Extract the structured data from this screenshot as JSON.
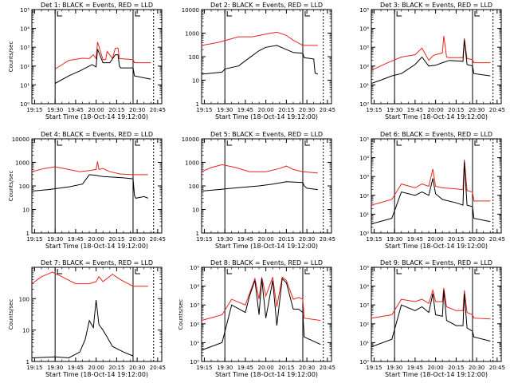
{
  "figure": {
    "colors": {
      "events": "#000000",
      "lld": "#e8241f",
      "axes": "#000000",
      "background": "#ffffff"
    },
    "xlabel": "Start Time (18-Oct-14 19:12:00)",
    "ylabel": "Counts/sec"
  },
  "chart_data": [
    {
      "type": "line",
      "title": "Det 1: BLACK = Events, RED = LLD",
      "xlabel": "Start Time (18-Oct-14 19:12:00)",
      "ylabel": "Counts/sec",
      "y_scale": "log",
      "ylim": [
        1,
        100000
      ],
      "ytick_labels": [
        "10⁰",
        "10¹",
        "10²",
        "10³",
        "10⁴",
        "10⁵"
      ],
      "xtick_labels": [
        "19:15",
        "19:30",
        "19:45",
        "20:00",
        "20:15",
        "20:30",
        "20:45"
      ],
      "marker_times": [
        "19:30",
        "20:27",
        "20:42"
      ],
      "series": [
        {
          "color": "red",
          "x": [
            "19:30",
            "19:40",
            "19:50",
            "19:55",
            "19:58",
            "20:00",
            "20:01",
            "20:05",
            "20:07",
            "20:08",
            "20:12",
            "20:14",
            "20:16",
            "20:17",
            "20:27",
            "20:28",
            "20:40"
          ],
          "y": [
            70,
            200,
            260,
            250,
            400,
            250,
            1900,
            220,
            220,
            600,
            250,
            900,
            900,
            250,
            220,
            150,
            150
          ]
        },
        {
          "color": "black",
          "x": [
            "19:30",
            "19:40",
            "19:48",
            "19:55",
            "19:57",
            "20:00",
            "20:01",
            "20:05",
            "20:10",
            "20:14",
            "20:16",
            "20:17",
            "20:18",
            "20:27",
            "20:28",
            "20:40"
          ],
          "y": [
            12,
            30,
            55,
            100,
            120,
            90,
            800,
            150,
            150,
            400,
            400,
            100,
            80,
            80,
            30,
            20
          ]
        }
      ]
    },
    {
      "type": "line",
      "title": "Det 2: BLACK = Events, RED = LLD",
      "xlabel": "Start Time (18-Oct-14 19:12:00)",
      "ylabel": "",
      "y_scale": "log",
      "ylim": [
        1,
        10000
      ],
      "ytick_labels": [
        "1",
        "10",
        "100",
        "1000",
        "10000"
      ],
      "xtick_labels": [
        "19:15",
        "19:30",
        "19:45",
        "20:00",
        "20:15",
        "20:30",
        "20:45"
      ],
      "marker_times": [
        "19:30",
        "20:27",
        "20:42"
      ],
      "series": [
        {
          "color": "red",
          "x": [
            "19:13",
            "19:25",
            "19:40",
            "19:50",
            "20:00",
            "20:08",
            "20:15",
            "20:20",
            "20:27",
            "20:30",
            "20:38"
          ],
          "y": [
            300,
            400,
            700,
            700,
            900,
            1100,
            800,
            500,
            300,
            300,
            300
          ]
        },
        {
          "color": "black",
          "x": [
            "19:13",
            "19:28",
            "19:30",
            "19:40",
            "19:48",
            "19:55",
            "20:00",
            "20:08",
            "20:20",
            "20:27",
            "20:28",
            "20:35",
            "20:36",
            "20:38"
          ],
          "y": [
            18,
            22,
            30,
            40,
            90,
            180,
            250,
            300,
            150,
            140,
            90,
            80,
            20,
            18
          ]
        }
      ]
    },
    {
      "type": "line",
      "title": "Det 3: BLACK = Events, RED = LLD",
      "xlabel": "Start Time (18-Oct-14 19:12:00)",
      "ylabel": "",
      "y_scale": "log",
      "ylim": [
        1,
        100000
      ],
      "ytick_labels": [
        "10⁰",
        "10¹",
        "10²",
        "10³",
        "10⁴",
        "10⁵"
      ],
      "xtick_labels": [
        "19:15",
        "19:30",
        "19:45",
        "20:00",
        "20:15",
        "20:30",
        "20:45"
      ],
      "marker_times": [
        "19:30",
        "20:27",
        "20:42"
      ],
      "series": [
        {
          "color": "red",
          "x": [
            "19:13",
            "19:25",
            "19:35",
            "19:45",
            "19:50",
            "19:55",
            "19:58",
            "20:00",
            "20:05",
            "20:06",
            "20:08",
            "20:10",
            "20:20",
            "20:21",
            "20:23",
            "20:27",
            "20:28",
            "20:40"
          ],
          "y": [
            60,
            150,
            300,
            400,
            900,
            200,
            350,
            400,
            500,
            4000,
            300,
            280,
            280,
            3000,
            250,
            220,
            150,
            150
          ]
        },
        {
          "color": "black",
          "x": [
            "19:13",
            "19:20",
            "19:28",
            "19:35",
            "19:45",
            "19:50",
            "19:55",
            "20:00",
            "20:05",
            "20:10",
            "20:20",
            "20:21",
            "20:23",
            "20:27",
            "20:28",
            "20:40"
          ],
          "y": [
            12,
            18,
            30,
            40,
            120,
            300,
            100,
            110,
            150,
            200,
            180,
            2500,
            120,
            100,
            40,
            30
          ]
        }
      ]
    },
    {
      "type": "line",
      "title": "Det 4: BLACK = Events, RED = LLD",
      "xlabel": "Start Time (18-Oct-14 19:12:00)",
      "ylabel": "Counts/sec",
      "y_scale": "log",
      "ylim": [
        1,
        10000
      ],
      "ytick_labels": [
        "1",
        "10",
        "100",
        "1000",
        "10000"
      ],
      "xtick_labels": [
        "19:15",
        "19:30",
        "19:45",
        "20:00",
        "20:15",
        "20:30",
        "20:45"
      ],
      "marker_times": [
        "19:30",
        "20:27",
        "20:42"
      ],
      "series": [
        {
          "color": "red",
          "x": [
            "19:13",
            "19:22",
            "19:30",
            "19:40",
            "19:48",
            "19:55",
            "20:00",
            "20:01",
            "20:02",
            "20:05",
            "20:10",
            "20:18",
            "20:27",
            "20:38"
          ],
          "y": [
            400,
            550,
            650,
            500,
            400,
            450,
            500,
            1100,
            500,
            550,
            400,
            320,
            300,
            300
          ]
        },
        {
          "color": "black",
          "x": [
            "19:13",
            "19:25",
            "19:40",
            "19:50",
            "19:55",
            "20:00",
            "20:05",
            "20:10",
            "20:20",
            "20:27",
            "20:28",
            "20:29",
            "20:35",
            "20:38"
          ],
          "y": [
            60,
            70,
            90,
            120,
            300,
            280,
            250,
            240,
            220,
            200,
            40,
            30,
            35,
            30
          ]
        }
      ]
    },
    {
      "type": "line",
      "title": "Det 5: BLACK = Events, RED = LLD",
      "xlabel": "Start Time (18-Oct-14 19:12:00)",
      "ylabel": "",
      "y_scale": "log",
      "ylim": [
        1,
        10000
      ],
      "ytick_labels": [
        "1",
        "10",
        "100",
        "1000",
        "10000"
      ],
      "xtick_labels": [
        "19:15",
        "19:30",
        "19:45",
        "20:00",
        "20:15",
        "20:30",
        "20:45"
      ],
      "marker_times": [
        "19:30",
        "20:27",
        "20:42"
      ],
      "series": [
        {
          "color": "red",
          "x": [
            "19:13",
            "19:20",
            "19:28",
            "19:38",
            "19:48",
            "20:00",
            "20:10",
            "20:15",
            "20:20",
            "20:27",
            "20:38"
          ],
          "y": [
            400,
            600,
            800,
            600,
            400,
            400,
            550,
            700,
            500,
            400,
            350
          ]
        },
        {
          "color": "black",
          "x": [
            "19:13",
            "19:25",
            "19:40",
            "19:55",
            "20:05",
            "20:15",
            "20:27",
            "20:28",
            "20:30",
            "20:38"
          ],
          "y": [
            60,
            70,
            85,
            100,
            120,
            150,
            140,
            100,
            80,
            70
          ]
        }
      ]
    },
    {
      "type": "line",
      "title": "Det 6: BLACK = Events, RED = LLD",
      "xlabel": "Start Time (18-Oct-14 19:12:00)",
      "ylabel": "",
      "y_scale": "log",
      "ylim": [
        1,
        100000
      ],
      "ytick_labels": [
        "10⁰",
        "10¹",
        "10²",
        "10³",
        "10⁴",
        "10⁵"
      ],
      "xtick_labels": [
        "19:15",
        "19:30",
        "19:45",
        "20:00",
        "20:15",
        "20:30",
        "20:45"
      ],
      "marker_times": [
        "19:30",
        "20:27",
        "20:42"
      ],
      "series": [
        {
          "color": "red",
          "x": [
            "19:13",
            "19:28",
            "19:35",
            "19:45",
            "19:50",
            "19:55",
            "19:58",
            "20:00",
            "20:05",
            "20:15",
            "20:20",
            "20:21",
            "20:23",
            "20:27",
            "20:28",
            "20:40"
          ],
          "y": [
            30,
            60,
            400,
            250,
            400,
            300,
            2500,
            300,
            250,
            220,
            200,
            8000,
            180,
            150,
            50,
            50
          ]
        },
        {
          "color": "black",
          "x": [
            "19:13",
            "19:28",
            "19:35",
            "19:45",
            "19:50",
            "19:55",
            "19:58",
            "20:00",
            "20:05",
            "20:15",
            "20:20",
            "20:21",
            "20:23",
            "20:27",
            "20:28",
            "20:40"
          ],
          "y": [
            3,
            6,
            150,
            100,
            150,
            100,
            800,
            120,
            60,
            40,
            30,
            6000,
            30,
            25,
            6,
            4
          ]
        }
      ]
    },
    {
      "type": "line",
      "title": "Det 7: BLACK = Events, RED = LLD",
      "xlabel": "Start Time (18-Oct-14 19:12:00)",
      "ylabel": "Counts/sec",
      "y_scale": "log",
      "ylim": [
        1,
        1000
      ],
      "ytick_labels": [
        "1",
        "10",
        "100"
      ],
      "xtick_labels": [
        "19:15",
        "19:30",
        "19:45",
        "20:00",
        "20:15",
        "20:30",
        "20:45"
      ],
      "marker_times": [
        "19:30",
        "20:27",
        "20:42"
      ],
      "series": [
        {
          "color": "red",
          "x": [
            "19:13",
            "19:20",
            "19:28",
            "19:35",
            "19:45",
            "19:55",
            "20:00",
            "20:02",
            "20:05",
            "20:12",
            "20:18",
            "20:27",
            "20:38"
          ],
          "y": [
            300,
            500,
            700,
            500,
            300,
            300,
            350,
            500,
            350,
            600,
            400,
            250,
            250
          ]
        },
        {
          "color": "black",
          "x": [
            "19:13",
            "19:30",
            "19:40",
            "19:48",
            "19:52",
            "19:55",
            "19:58",
            "20:00",
            "20:02",
            "20:05",
            "20:08",
            "20:12",
            "20:20",
            "20:27"
          ],
          "y": [
            1.3,
            1.4,
            1.3,
            2,
            5,
            20,
            12,
            90,
            15,
            10,
            6,
            3,
            2,
            1.5
          ]
        }
      ]
    },
    {
      "type": "line",
      "title": "Det 8: BLACK = Events, RED = LLD",
      "xlabel": "Start Time (18-Oct-14 19:12:00)",
      "ylabel": "Counts/sec",
      "y_scale": "log",
      "ylim": [
        1,
        100000
      ],
      "ytick_labels": [
        "10⁰",
        "10¹",
        "10²",
        "10³",
        "10⁴",
        "10⁵"
      ],
      "xtick_labels": [
        "19:15",
        "19:30",
        "19:45",
        "20:00",
        "20:15",
        "20:30",
        "20:45"
      ],
      "marker_times": [
        "19:30",
        "20:27",
        "20:42"
      ],
      "series": [
        {
          "color": "red",
          "x": [
            "19:13",
            "19:28",
            "19:35",
            "19:45",
            "19:48",
            "19:52",
            "19:55",
            "19:57",
            "20:00",
            "20:05",
            "20:08",
            "20:12",
            "20:15",
            "20:20",
            "20:24",
            "20:27",
            "20:28",
            "20:40"
          ],
          "y": [
            150,
            300,
            2000,
            1000,
            4000,
            25000,
            2000,
            30000,
            3000,
            30000,
            800,
            30000,
            20000,
            2000,
            2500,
            2000,
            200,
            150
          ]
        },
        {
          "color": "black",
          "x": [
            "19:13",
            "19:28",
            "19:35",
            "19:45",
            "19:48",
            "19:52",
            "19:55",
            "19:57",
            "20:00",
            "20:05",
            "20:08",
            "20:12",
            "20:15",
            "20:20",
            "20:24",
            "20:27",
            "20:28",
            "20:40"
          ],
          "y": [
            4,
            10,
            1000,
            400,
            3000,
            20000,
            300,
            25000,
            200,
            20000,
            80,
            25000,
            15000,
            600,
            600,
            400,
            20,
            8
          ]
        }
      ]
    },
    {
      "type": "line",
      "title": "Det 9: BLACK = Events, RED = LLD",
      "xlabel": "Start Time (18-Oct-14 19:12:00)",
      "ylabel": "",
      "y_scale": "log",
      "ylim": [
        1,
        100000
      ],
      "ytick_labels": [
        "10⁰",
        "10¹",
        "10²",
        "10³",
        "10⁴",
        "10⁵"
      ],
      "xtick_labels": [
        "19:15",
        "19:30",
        "19:45",
        "20:00",
        "20:15",
        "20:30",
        "20:45"
      ],
      "marker_times": [
        "19:30",
        "20:27",
        "20:42"
      ],
      "series": [
        {
          "color": "red",
          "x": [
            "19:13",
            "19:28",
            "19:35",
            "19:45",
            "19:50",
            "19:55",
            "19:58",
            "20:00",
            "20:05",
            "20:06",
            "20:08",
            "20:15",
            "20:20",
            "20:21",
            "20:23",
            "20:27",
            "20:28",
            "20:40"
          ],
          "y": [
            200,
            300,
            2000,
            1500,
            2000,
            1200,
            6000,
            1500,
            1500,
            8000,
            800,
            500,
            500,
            6000,
            400,
            300,
            200,
            180
          ]
        },
        {
          "color": "black",
          "x": [
            "19:13",
            "19:28",
            "19:35",
            "19:45",
            "19:50",
            "19:55",
            "19:58",
            "20:00",
            "20:05",
            "20:06",
            "20:08",
            "20:15",
            "20:20",
            "20:21",
            "20:23",
            "20:27",
            "20:28",
            "20:40"
          ],
          "y": [
            6,
            15,
            1000,
            500,
            800,
            400,
            4000,
            300,
            250,
            6000,
            150,
            80,
            80,
            4000,
            60,
            40,
            20,
            12
          ]
        }
      ]
    }
  ]
}
